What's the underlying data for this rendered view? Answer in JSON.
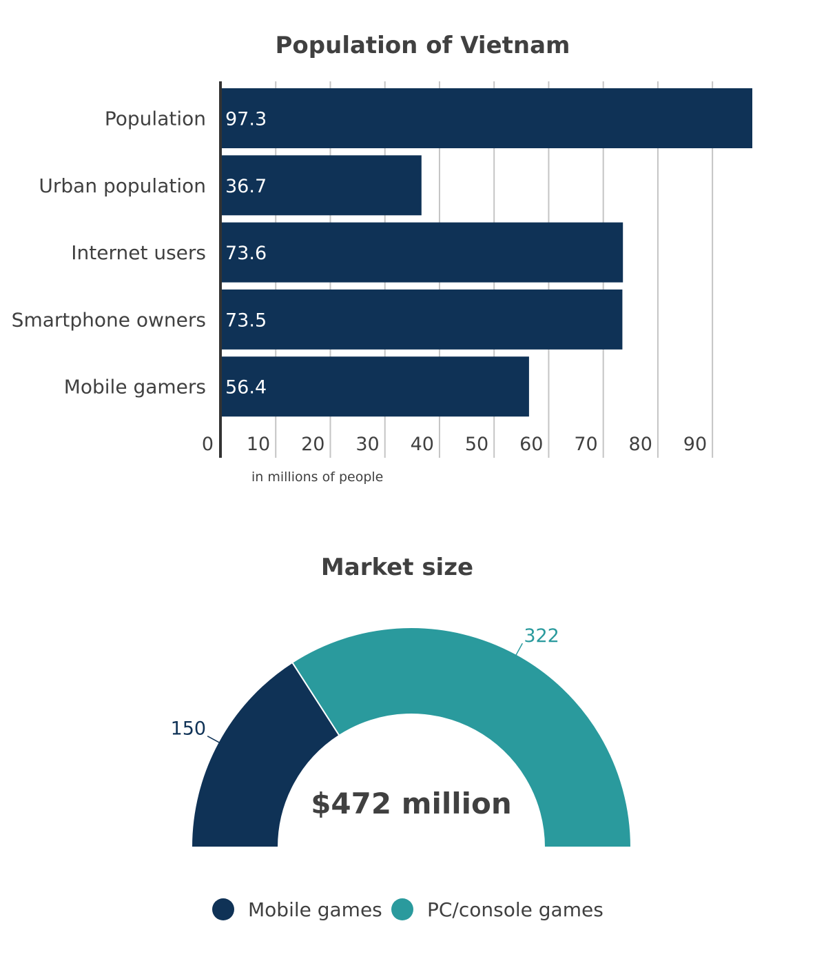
{
  "colors": {
    "navy": "#0f3256",
    "teal": "#2a9a9d",
    "grid": "#c4c4c4",
    "axis": "#333333"
  },
  "chart_data": [
    {
      "type": "bar",
      "orientation": "horizontal",
      "title": "Population of Vietnam",
      "categories": [
        "Population",
        "Urban population",
        "Internet users",
        "Smartphone owners",
        "Mobile gamers"
      ],
      "values": [
        97.3,
        36.7,
        73.6,
        73.5,
        56.4
      ],
      "data_labels": [
        "97.3",
        "36.7",
        "73.6",
        "73.5",
        "56.4"
      ],
      "xticks": [
        0,
        10,
        20,
        30,
        40,
        50,
        60,
        70,
        80,
        90
      ],
      "xlim": [
        0,
        97.3
      ],
      "xlabel": "in millions of people",
      "grid": true
    },
    {
      "type": "pie",
      "style": "half-donut",
      "title": "Market size",
      "center_label": "$472 million",
      "slices": [
        {
          "name": "Mobile games",
          "value": 150,
          "label": "150",
          "color": "#0f3256"
        },
        {
          "name": "PC/console games",
          "value": 322,
          "label": "322",
          "color": "#2a9a9d"
        }
      ],
      "legend": {
        "position": "bottom"
      }
    }
  ]
}
